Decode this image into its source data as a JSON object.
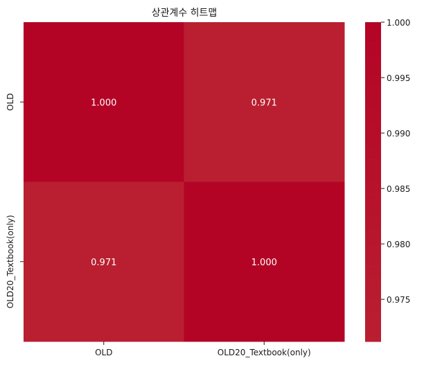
{
  "chart_data": {
    "type": "heatmap",
    "title": "상관계수 히트맵",
    "x_categories": [
      "OLD",
      "OLD20_Textbook(only)"
    ],
    "y_categories": [
      "OLD",
      "OLD20_Textbook(only)"
    ],
    "values": [
      [
        1.0,
        0.971
      ],
      [
        0.971,
        1.0
      ]
    ],
    "cell_labels": [
      [
        "1.000",
        "0.971"
      ],
      [
        "0.971",
        "1.000"
      ]
    ],
    "colorbar": {
      "range": [
        0.9712,
        1.0
      ],
      "ticks": [
        0.975,
        0.98,
        0.985,
        0.99,
        0.995,
        1.0
      ],
      "tick_labels": [
        "0.975",
        "0.980",
        "0.985",
        "0.990",
        "0.995",
        "1.000"
      ],
      "color_low": "#b91f30",
      "color_high": "#b40426"
    },
    "xlabel": "",
    "ylabel": ""
  }
}
